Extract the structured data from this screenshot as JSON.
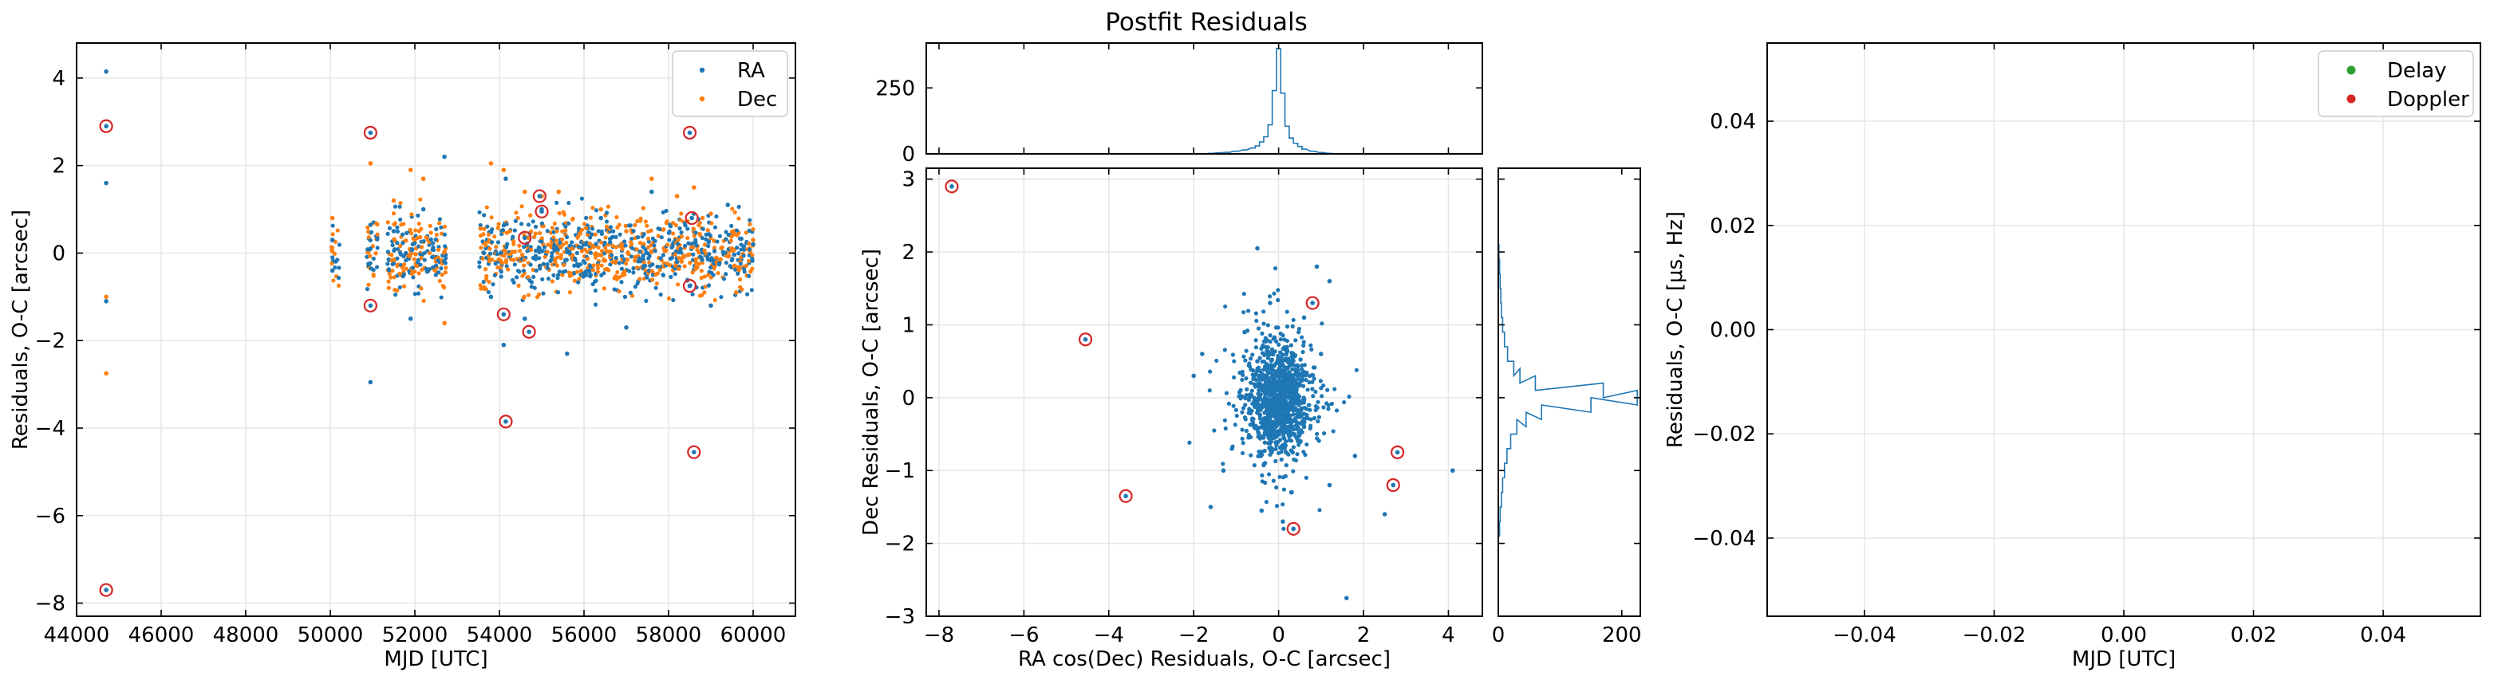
{
  "figure_title": "Postfit Residuals",
  "colors": {
    "ra": "#1f77b4",
    "dec": "#ff7f0e",
    "delay": "#2ca02c",
    "doppler": "#d62728",
    "outlier": "#d62728",
    "hist": "#1f77b4"
  },
  "chart_data": [
    {
      "id": "time_residuals",
      "type": "scatter",
      "title": "",
      "xlabel": "MJD [UTC]",
      "ylabel": "Residuals, O-C [arcsec]",
      "xlim": [
        44000,
        61000
      ],
      "ylim": [
        -8.3,
        4.8
      ],
      "xticks": [
        44000,
        46000,
        48000,
        50000,
        52000,
        54000,
        56000,
        58000,
        60000
      ],
      "yticks": [
        -8,
        -6,
        -4,
        -2,
        0,
        2,
        4
      ],
      "grid": true,
      "legend": {
        "position": "top-right",
        "entries": [
          "RA",
          "Dec"
        ]
      },
      "series": [
        {
          "name": "RA",
          "color_key": "ra",
          "note": "dense scatter; representative points",
          "x": [
            44700,
            44700,
            44700,
            50050,
            50050,
            50950,
            50950,
            51500,
            51900,
            52200,
            52700,
            53800,
            54100,
            54150,
            54600,
            55000,
            55600,
            56400,
            57000,
            57600,
            58200,
            58600,
            59000,
            59400,
            60000
          ],
          "y": [
            4.15,
            1.6,
            -1.1,
            0.3,
            -0.4,
            -2.95,
            0.1,
            0.5,
            -1.5,
            1.0,
            2.2,
            -1.0,
            -2.1,
            1.7,
            -1.5,
            1.0,
            -2.3,
            0.8,
            -1.7,
            1.4,
            -0.2,
            0.9,
            -1.2,
            1.1,
            0.2
          ]
        },
        {
          "name": "Dec",
          "color_key": "dec",
          "note": "dense scatter; representative points",
          "x": [
            44700,
            44700,
            50050,
            50950,
            51500,
            51900,
            52200,
            52700,
            53800,
            54100,
            54600,
            55000,
            55400,
            56400,
            57000,
            57600,
            58200,
            58600,
            59000,
            59600,
            60000
          ],
          "y": [
            -2.75,
            -1.0,
            0.8,
            2.05,
            1.2,
            1.9,
            1.7,
            -1.6,
            2.05,
            1.9,
            1.4,
            1.3,
            1.4,
            1.0,
            0.5,
            1.7,
            1.3,
            1.5,
            0.9,
            -0.9,
            0.3
          ]
        }
      ],
      "outliers": {
        "x": [
          44700,
          44700,
          50950,
          50950,
          54100,
          54150,
          54600,
          54700,
          54950,
          55000,
          58500,
          58500,
          58550,
          58600
        ],
        "y": [
          2.9,
          -7.7,
          2.75,
          -1.2,
          -1.4,
          -3.85,
          0.35,
          -1.8,
          1.3,
          0.95,
          2.75,
          -0.75,
          0.8,
          -4.55
        ]
      }
    },
    {
      "id": "top_histogram",
      "type": "histogram",
      "title": "Postfit Residuals",
      "ylim": [
        0,
        420
      ],
      "yticks": [
        0,
        250
      ],
      "note": "distribution of RA cos(Dec) residuals",
      "bin_centers": [
        -1.6,
        -1.4,
        -1.2,
        -1.0,
        -0.8,
        -0.6,
        -0.5,
        -0.4,
        -0.3,
        -0.2,
        -0.1,
        0.0,
        0.1,
        0.2,
        0.3,
        0.4,
        0.5,
        0.6,
        0.8,
        1.0,
        1.2
      ],
      "counts": [
        2,
        4,
        6,
        10,
        15,
        22,
        30,
        45,
        65,
        110,
        240,
        400,
        230,
        105,
        60,
        40,
        28,
        18,
        10,
        5,
        2
      ]
    },
    {
      "id": "residual_scatter",
      "type": "scatter",
      "title": "",
      "xlabel": "RA cos(Dec) Residuals, O-C [arcsec]",
      "ylabel": "Dec Residuals, O-C [arcsec]",
      "xlim": [
        -8.3,
        4.8
      ],
      "ylim": [
        -3,
        3.15
      ],
      "xticks": [
        -8,
        -6,
        -4,
        -2,
        0,
        2,
        4
      ],
      "yticks": [
        -3,
        -2,
        -1,
        0,
        1,
        2,
        3
      ],
      "grid": true,
      "series": [
        {
          "name": "",
          "color_key": "ra",
          "note": "dense cluster near origin; representative points",
          "x": [
            -1.3,
            -1.6,
            -2.0,
            -0.5,
            0.9,
            1.2,
            1.6,
            1.2,
            2.5,
            4.1,
            -0.4,
            0.1,
            -1.1,
            0.6,
            1.0,
            -1.8,
            1.8,
            -0.2,
            0.3,
            -0.8,
            0.6,
            -0.5,
            0.4,
            -0.3,
            0.1
          ],
          "y": [
            -1.0,
            -1.5,
            0.3,
            2.05,
            1.8,
            1.6,
            -2.75,
            -1.2,
            -1.6,
            -1.0,
            -1.55,
            -1.7,
            -0.7,
            1.1,
            0.6,
            0.6,
            -0.8,
            1.3,
            -1.3,
            0.9,
            -0.4,
            0.5,
            0.1,
            -0.2,
            0.3
          ]
        }
      ],
      "outliers": {
        "x": [
          -7.7,
          -4.55,
          -3.6,
          0.8,
          0.35,
          2.7,
          2.8
        ],
        "y": [
          2.9,
          0.8,
          -1.35,
          1.3,
          -1.8,
          -1.2,
          -0.75
        ]
      }
    },
    {
      "id": "right_histogram",
      "type": "histogram",
      "orientation": "horizontal",
      "xlim": [
        0,
        230
      ],
      "xticks": [
        0,
        200
      ],
      "note": "distribution of Dec residuals",
      "bin_centers": [
        -1.8,
        -1.6,
        -1.4,
        -1.2,
        -1.0,
        -0.8,
        -0.6,
        -0.4,
        -0.3,
        -0.2,
        -0.1,
        0.0,
        0.1,
        0.2,
        0.3,
        0.4,
        0.6,
        0.8,
        1.0,
        1.2,
        1.4,
        1.6,
        1.8,
        2.0
      ],
      "counts": [
        2,
        3,
        5,
        7,
        10,
        14,
        20,
        30,
        45,
        70,
        150,
        225,
        170,
        60,
        35,
        25,
        15,
        10,
        7,
        5,
        4,
        3,
        2,
        1
      ]
    },
    {
      "id": "radar_residuals",
      "type": "scatter",
      "title": "",
      "xlabel": "MJD [UTC]",
      "ylabel": "Residuals, O-C [μs, Hz]",
      "xlim": [
        -0.055,
        0.055
      ],
      "ylim": [
        -0.055,
        0.055
      ],
      "xticks": [
        -0.04,
        -0.02,
        0.0,
        0.02,
        0.04
      ],
      "yticks": [
        -0.04,
        -0.02,
        0.0,
        0.02,
        0.04
      ],
      "grid": true,
      "legend": {
        "position": "top-right",
        "entries": [
          "Delay",
          "Doppler"
        ]
      },
      "series": [
        {
          "name": "Delay",
          "color_key": "delay",
          "x": [],
          "y": []
        },
        {
          "name": "Doppler",
          "color_key": "doppler",
          "x": [],
          "y": []
        }
      ]
    }
  ]
}
